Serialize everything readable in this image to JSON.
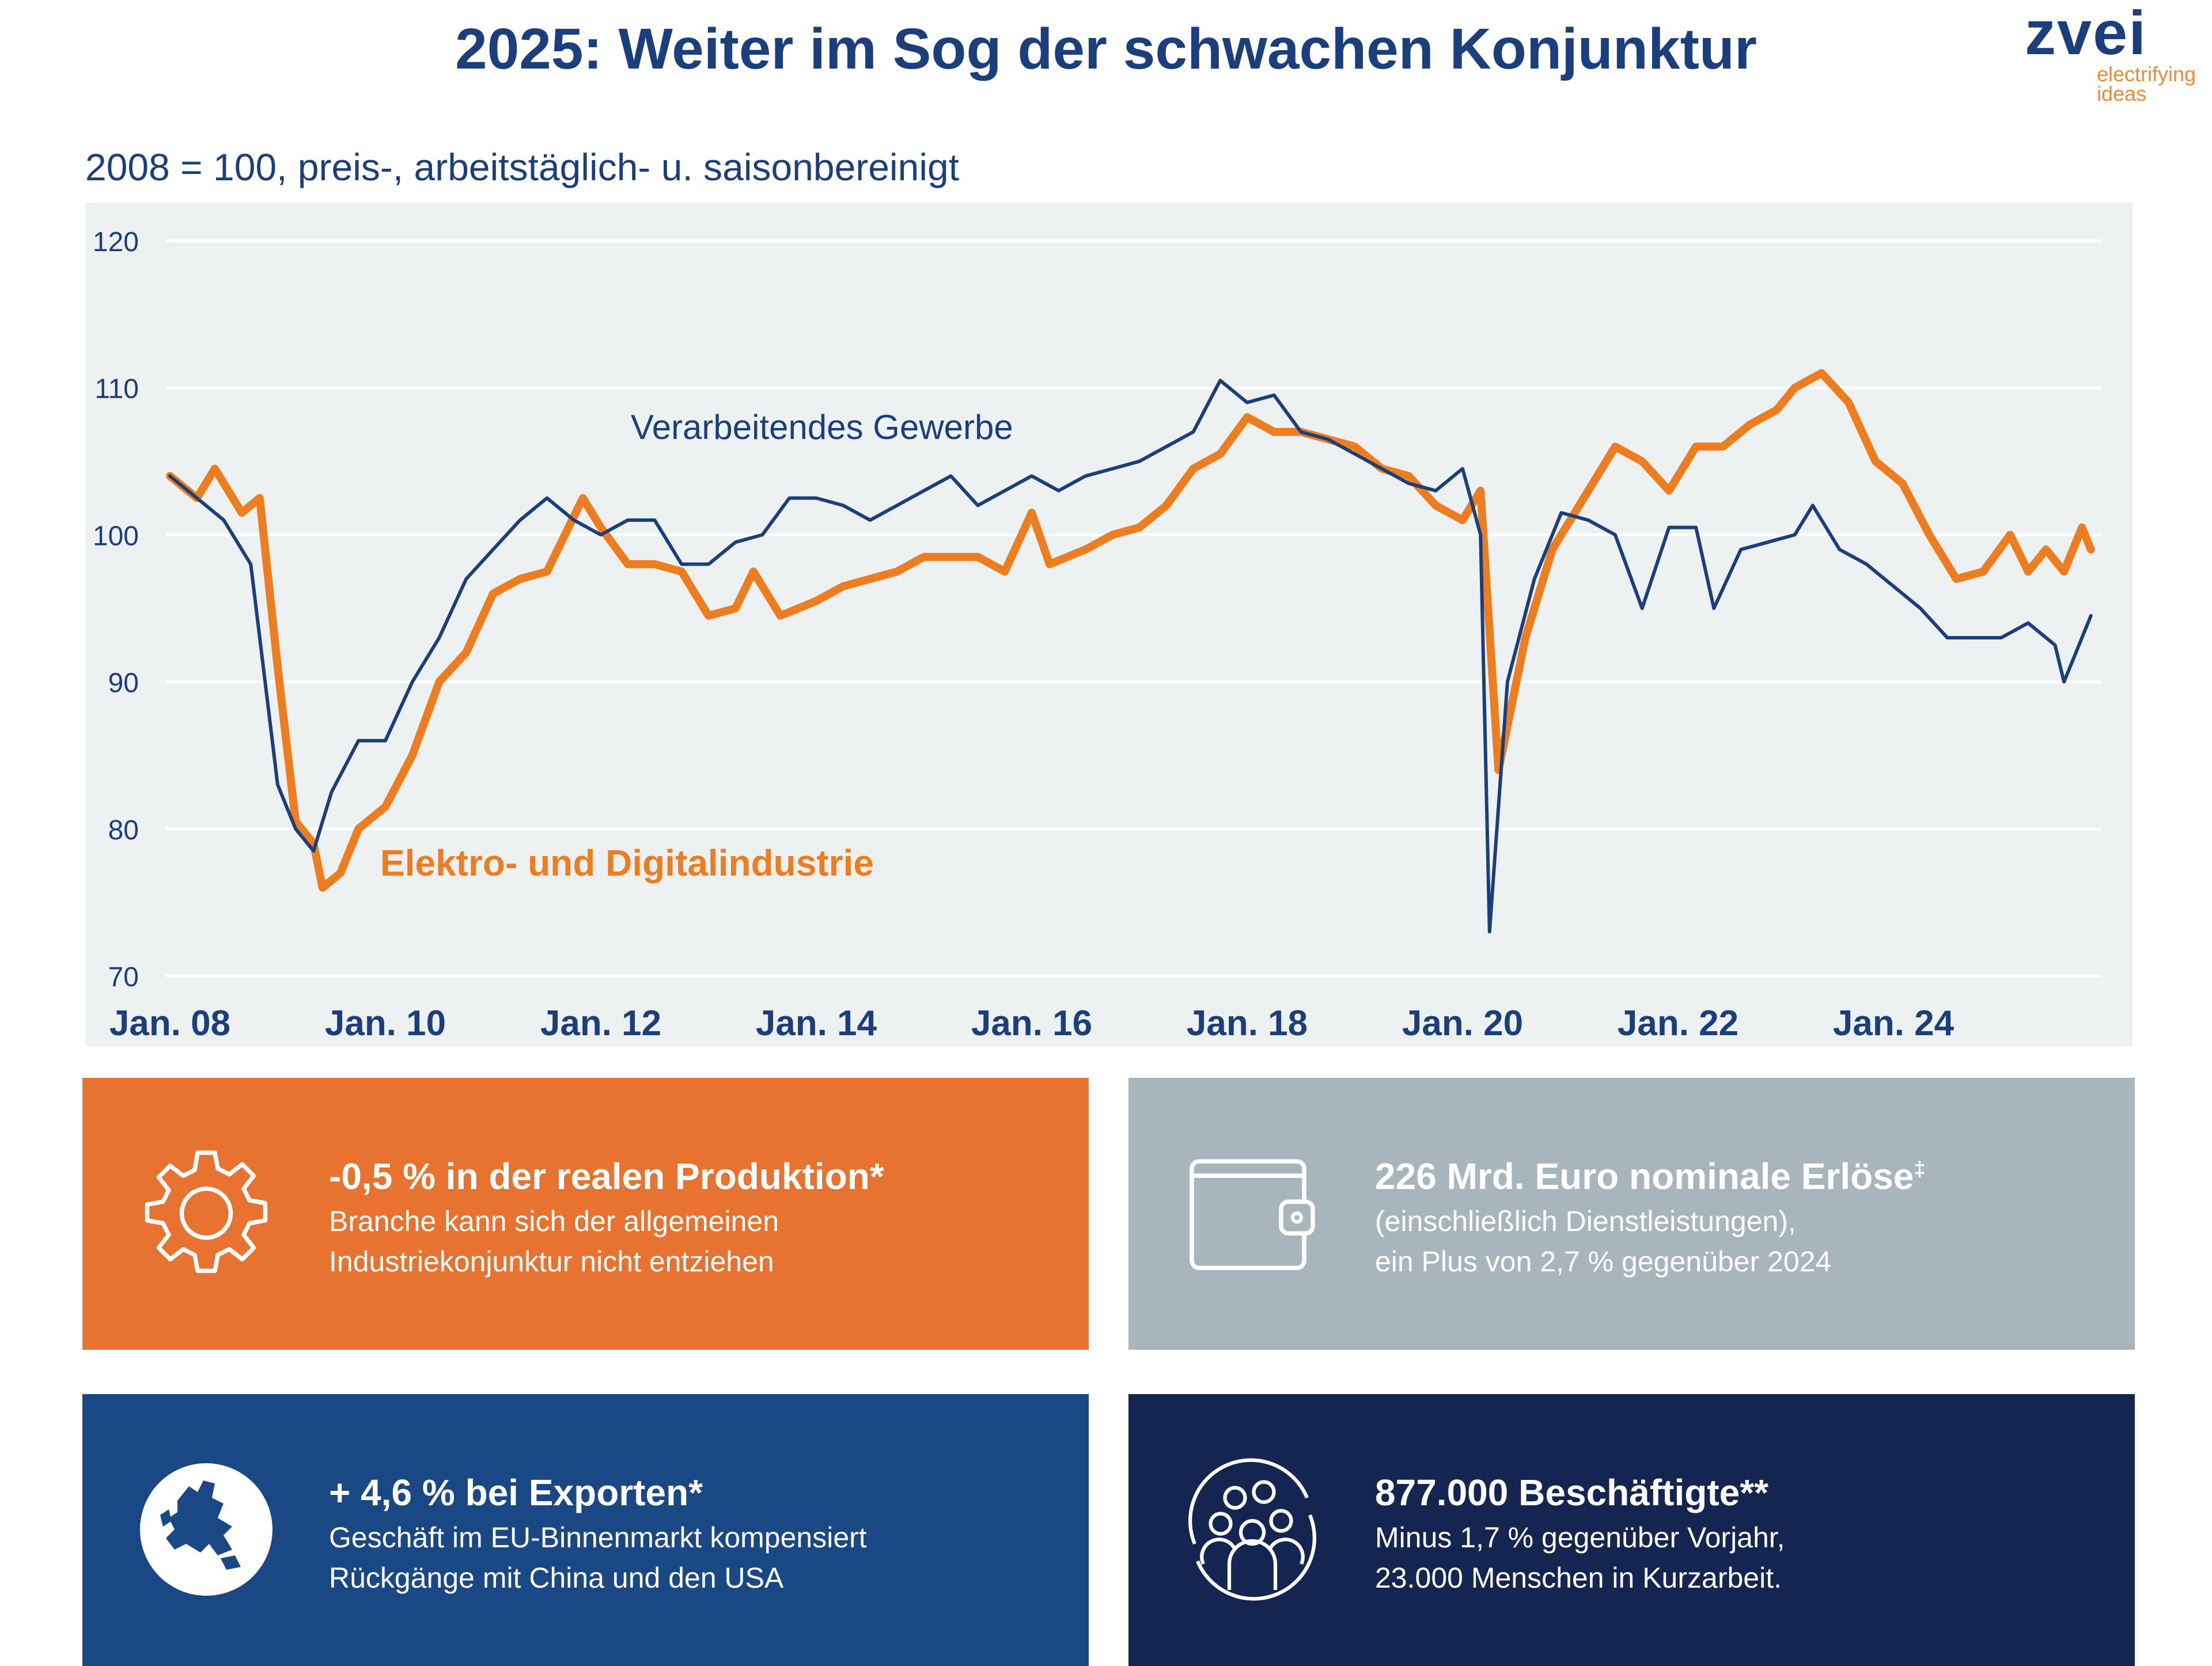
{
  "header": {
    "title": "2025: Weiter im Sog der schwachen Konjunktur",
    "logo_word": "zvei",
    "logo_tagline_1": "electrifying",
    "logo_tagline_2": "ideas"
  },
  "subtitle": "2008 = 100, preis-, arbeitstäglich- u. saisonbereinigt",
  "colors": {
    "orange": "#ED7D1E",
    "navy": "#1B3F7C",
    "chart_bg": "#EEF1F2",
    "box_orange": "#E87331",
    "box_grey": "#A9B5BD",
    "box_blue": "#1A4884",
    "box_navy": "#152551"
  },
  "chart_data": {
    "type": "line",
    "title": "",
    "xlabel": "",
    "ylabel": "",
    "ylim": [
      70,
      120
    ],
    "yticks": [
      "70",
      "80",
      "90",
      "100",
      "110",
      "120"
    ],
    "xticks": [
      "Jan. 08",
      "Jan. 10",
      "Jan. 12",
      "Jan. 14",
      "Jan. 16",
      "Jan. 18",
      "Jan. 20",
      "Jan. 22",
      "Jan. 24"
    ],
    "grid": "horizontal",
    "series": [
      {
        "name": "Verarbeitendes Gewerbe",
        "color": "#1B3F7C",
        "points": [
          [
            "2008-01",
            104
          ],
          [
            "2008-04",
            102.5
          ],
          [
            "2008-07",
            101
          ],
          [
            "2008-10",
            98
          ],
          [
            "2009-01",
            83
          ],
          [
            "2009-03",
            80
          ],
          [
            "2009-05",
            78.5
          ],
          [
            "2009-07",
            82.5
          ],
          [
            "2009-10",
            86
          ],
          [
            "2010-01",
            86
          ],
          [
            "2010-04",
            90
          ],
          [
            "2010-07",
            93
          ],
          [
            "2010-10",
            97
          ],
          [
            "2011-01",
            99
          ],
          [
            "2011-04",
            101
          ],
          [
            "2011-07",
            102.5
          ],
          [
            "2011-10",
            101
          ],
          [
            "2012-01",
            100
          ],
          [
            "2012-04",
            101
          ],
          [
            "2012-07",
            101
          ],
          [
            "2012-10",
            98
          ],
          [
            "2013-01",
            98
          ],
          [
            "2013-04",
            99.5
          ],
          [
            "2013-07",
            100
          ],
          [
            "2013-10",
            102.5
          ],
          [
            "2014-01",
            102.5
          ],
          [
            "2014-04",
            102
          ],
          [
            "2014-07",
            101
          ],
          [
            "2014-10",
            102
          ],
          [
            "2015-01",
            103
          ],
          [
            "2015-04",
            104
          ],
          [
            "2015-07",
            102
          ],
          [
            "2015-10",
            103
          ],
          [
            "2016-01",
            104
          ],
          [
            "2016-04",
            103
          ],
          [
            "2016-07",
            104
          ],
          [
            "2016-10",
            104.5
          ],
          [
            "2017-01",
            105
          ],
          [
            "2017-04",
            106
          ],
          [
            "2017-07",
            107
          ],
          [
            "2017-10",
            110.5
          ],
          [
            "2018-01",
            109
          ],
          [
            "2018-04",
            109.5
          ],
          [
            "2018-07",
            107
          ],
          [
            "2018-10",
            106.5
          ],
          [
            "2019-01",
            105.5
          ],
          [
            "2019-04",
            104.5
          ],
          [
            "2019-07",
            103.5
          ],
          [
            "2019-10",
            103
          ],
          [
            "2020-01",
            104.5
          ],
          [
            "2020-03",
            100
          ],
          [
            "2020-04",
            73
          ],
          [
            "2020-06",
            90
          ],
          [
            "2020-09",
            97
          ],
          [
            "2020-12",
            101.5
          ],
          [
            "2021-03",
            101
          ],
          [
            "2021-06",
            100
          ],
          [
            "2021-09",
            95
          ],
          [
            "2021-12",
            100.5
          ],
          [
            "2022-03",
            100.5
          ],
          [
            "2022-05",
            95
          ],
          [
            "2022-08",
            99
          ],
          [
            "2022-11",
            99.5
          ],
          [
            "2023-02",
            100
          ],
          [
            "2023-04",
            102
          ],
          [
            "2023-07",
            99
          ],
          [
            "2023-10",
            98
          ],
          [
            "2024-01",
            96.5
          ],
          [
            "2024-04",
            95
          ],
          [
            "2024-07",
            93
          ],
          [
            "2024-10",
            93
          ],
          [
            "2025-01",
            93
          ],
          [
            "2025-04",
            94
          ],
          [
            "2025-07",
            92.5
          ],
          [
            "2025-08",
            90
          ],
          [
            "2025-11",
            94.5
          ]
        ]
      },
      {
        "name": "Elektro- und Digitalindustrie",
        "color": "#ED7D1E",
        "points": [
          [
            "2008-01",
            104
          ],
          [
            "2008-04",
            102.5
          ],
          [
            "2008-06",
            104.5
          ],
          [
            "2008-09",
            101.5
          ],
          [
            "2008-11",
            102.5
          ],
          [
            "2009-01",
            91
          ],
          [
            "2009-03",
            80.5
          ],
          [
            "2009-05",
            79
          ],
          [
            "2009-06",
            76
          ],
          [
            "2009-08",
            77
          ],
          [
            "2009-10",
            80
          ],
          [
            "2010-01",
            81.5
          ],
          [
            "2010-04",
            85
          ],
          [
            "2010-07",
            90
          ],
          [
            "2010-10",
            92
          ],
          [
            "2011-01",
            96
          ],
          [
            "2011-04",
            97
          ],
          [
            "2011-07",
            97.5
          ],
          [
            "2011-09",
            100
          ],
          [
            "2011-11",
            102.5
          ],
          [
            "2012-01",
            100.5
          ],
          [
            "2012-04",
            98
          ],
          [
            "2012-07",
            98
          ],
          [
            "2012-10",
            97.5
          ],
          [
            "2013-01",
            94.5
          ],
          [
            "2013-04",
            95
          ],
          [
            "2013-06",
            97.5
          ],
          [
            "2013-09",
            94.5
          ],
          [
            "2014-01",
            95.5
          ],
          [
            "2014-04",
            96.5
          ],
          [
            "2014-07",
            97
          ],
          [
            "2014-10",
            97.5
          ],
          [
            "2015-01",
            98.5
          ],
          [
            "2015-04",
            98.5
          ],
          [
            "2015-07",
            98.5
          ],
          [
            "2015-10",
            97.5
          ],
          [
            "2016-01",
            101.5
          ],
          [
            "2016-03",
            98
          ],
          [
            "2016-07",
            99
          ],
          [
            "2016-10",
            100
          ],
          [
            "2017-01",
            100.5
          ],
          [
            "2017-04",
            102
          ],
          [
            "2017-07",
            104.5
          ],
          [
            "2017-10",
            105.5
          ],
          [
            "2018-01",
            108
          ],
          [
            "2018-04",
            107
          ],
          [
            "2018-07",
            107
          ],
          [
            "2018-10",
            106.5
          ],
          [
            "2019-01",
            106
          ],
          [
            "2019-04",
            104.5
          ],
          [
            "2019-07",
            104
          ],
          [
            "2019-10",
            102
          ],
          [
            "2020-01",
            101
          ],
          [
            "2020-03",
            103
          ],
          [
            "2020-05",
            84
          ],
          [
            "2020-08",
            93
          ],
          [
            "2020-11",
            99
          ],
          [
            "2021-03",
            103
          ],
          [
            "2021-06",
            106
          ],
          [
            "2021-09",
            105
          ],
          [
            "2021-12",
            103
          ],
          [
            "2022-03",
            106
          ],
          [
            "2022-06",
            106
          ],
          [
            "2022-09",
            107.5
          ],
          [
            "2022-12",
            108.5
          ],
          [
            "2023-02",
            110
          ],
          [
            "2023-05",
            111
          ],
          [
            "2023-08",
            109
          ],
          [
            "2023-11",
            105
          ],
          [
            "2024-02",
            103.5
          ],
          [
            "2024-05",
            100
          ],
          [
            "2024-08",
            97
          ],
          [
            "2024-11",
            97.5
          ],
          [
            "2025-02",
            100
          ],
          [
            "2025-04",
            97.5
          ],
          [
            "2025-06",
            99
          ],
          [
            "2025-08",
            97.5
          ],
          [
            "2025-10",
            100.5
          ],
          [
            "2025-11",
            99
          ]
        ]
      }
    ]
  },
  "cards": [
    {
      "icon": "gear-icon",
      "headline": "-0,5 % in der realen Produktion*",
      "line1": "Branche kann sich der allgemeinen",
      "line2": "Industriekonjunktur nicht entziehen"
    },
    {
      "icon": "wallet-icon",
      "headline": "226 Mrd. Euro nominale Erlöse",
      "headline_mark": "‡",
      "line1": "(einschließlich Dienstleistungen),",
      "line2": "ein Plus von 2,7 % gegenüber 2024"
    },
    {
      "icon": "globe-europe-icon",
      "headline": "+ 4,6 % bei Exporten*",
      "line1": "Geschäft im EU-Binnenmarkt kompensiert",
      "line2": "Rückgänge mit China und den USA"
    },
    {
      "icon": "people-cycle-icon",
      "headline": "877.000 Beschäftigte**",
      "line1": "Minus 1,7 % gegenüber Vorjahr,",
      "line2": "23.000 Menschen in Kurzarbeit."
    }
  ]
}
